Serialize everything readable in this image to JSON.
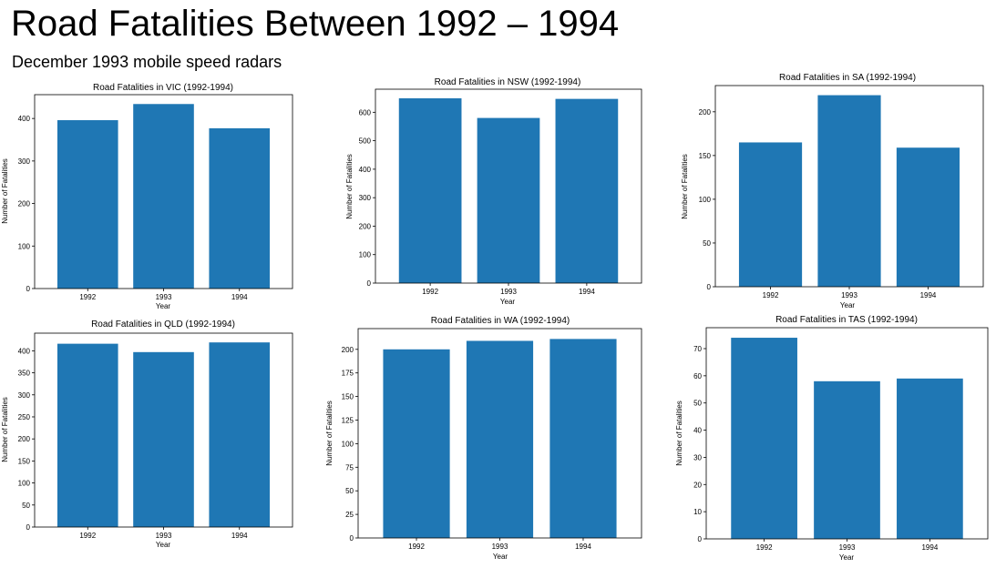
{
  "page": {
    "title": "Road Fatalities Between 1992 – 1994",
    "subtitle": "December 1993 mobile speed radars"
  },
  "colors": {
    "bar": "#1f77b4",
    "axes": "#000000"
  },
  "chart_data": [
    {
      "type": "bar",
      "title": "Road Fatalities in VIC (1992-1994)",
      "xlabel": "Year",
      "ylabel": "Number of Fatalities",
      "categories": [
        "1992",
        "1993",
        "1994"
      ],
      "values": [
        396,
        434,
        377
      ],
      "ylim": [
        0,
        456
      ],
      "yticks": [
        0,
        100,
        200,
        300,
        400
      ],
      "grid": false
    },
    {
      "type": "bar",
      "title": "Road Fatalities in NSW (1992-1994)",
      "xlabel": "Year",
      "ylabel": "Number of Fatalities",
      "categories": [
        "1992",
        "1993",
        "1994"
      ],
      "values": [
        649,
        580,
        647
      ],
      "ylim": [
        0,
        681
      ],
      "yticks": [
        0,
        100,
        200,
        300,
        400,
        500,
        600
      ],
      "grid": false
    },
    {
      "type": "bar",
      "title": "Road Fatalities in SA (1992-1994)",
      "xlabel": "Year",
      "ylabel": "Number of Fatalities",
      "categories": [
        "1992",
        "1993",
        "1994"
      ],
      "values": [
        165,
        219,
        159
      ],
      "ylim": [
        0,
        230
      ],
      "yticks": [
        0,
        50,
        100,
        150,
        200
      ],
      "grid": false
    },
    {
      "type": "bar",
      "title": "Road Fatalities in QLD (1992-1994)",
      "xlabel": "Year",
      "ylabel": "Number of Fatalities",
      "categories": [
        "1992",
        "1993",
        "1994"
      ],
      "values": [
        416,
        397,
        419
      ],
      "ylim": [
        0,
        440
      ],
      "yticks": [
        0,
        50,
        100,
        150,
        200,
        250,
        300,
        350,
        400
      ],
      "grid": false
    },
    {
      "type": "bar",
      "title": "Road Fatalities in WA (1992-1994)",
      "xlabel": "Year",
      "ylabel": "Number of Fatalities",
      "categories": [
        "1992",
        "1993",
        "1994"
      ],
      "values": [
        200,
        209,
        211
      ],
      "ylim": [
        0,
        222
      ],
      "yticks": [
        0,
        25,
        50,
        75,
        100,
        125,
        150,
        175,
        200
      ],
      "grid": false
    },
    {
      "type": "bar",
      "title": "Road Fatalities in TAS (1992-1994)",
      "xlabel": "Year",
      "ylabel": "Number of Fatalities",
      "categories": [
        "1992",
        "1993",
        "1994"
      ],
      "values": [
        74,
        58,
        59
      ],
      "ylim": [
        0,
        77.7
      ],
      "yticks": [
        0,
        10,
        20,
        30,
        40,
        50,
        60,
        70
      ],
      "grid": false
    }
  ]
}
